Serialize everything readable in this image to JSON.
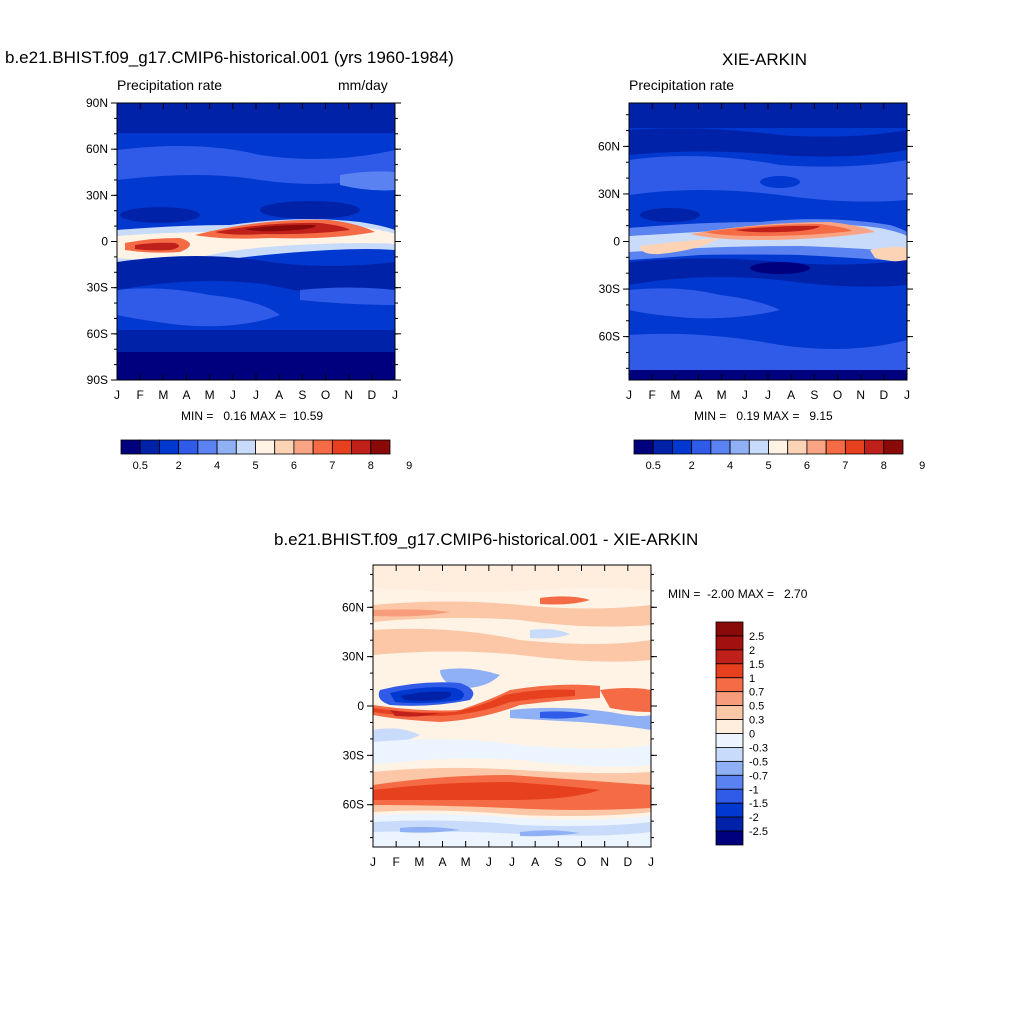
{
  "months": [
    "J",
    "F",
    "M",
    "A",
    "M",
    "J",
    "J",
    "A",
    "S",
    "O",
    "N",
    "D",
    "J"
  ],
  "palette": [
    "#00007f",
    "#0022a8",
    "#0038d0",
    "#2f5be8",
    "#5a82f0",
    "#8fb0f5",
    "#c8dbfb",
    "#fff3e6",
    "#fdd3b6",
    "#f9a585",
    "#f46b45",
    "#e6401e",
    "#c0201a",
    "#8a0a0a"
  ],
  "diff_palette": [
    "#00007f",
    "#0022a8",
    "#0038d0",
    "#2f5be8",
    "#5a82f0",
    "#8fb0f5",
    "#c8dbfb",
    "#ebf4ff",
    "#ffeedd",
    "#fcc7a6",
    "#f89d7c",
    "#f46b45",
    "#e6401e",
    "#c0201a",
    "#a31010",
    "#8a0a0a"
  ],
  "panels": {
    "model": {
      "title": "b.e21.BHIST.f09_g17.CMIP6-historical.001 (yrs 1960-1984)",
      "left_label": "Precipitation rate",
      "right_label": "mm/day",
      "stats": "MIN =   0.16 MAX =  10.59",
      "y_ticks": [
        "90N",
        "60N",
        "30N",
        "0",
        "30S",
        "60S",
        "90S"
      ],
      "colorbar_labels": [
        "0.5",
        "2",
        "4",
        "5",
        "6",
        "7",
        "8",
        "9"
      ]
    },
    "obs": {
      "title": "XIE-ARKIN",
      "left_label": "Precipitation rate",
      "stats": "MIN =   0.19 MAX =   9.15",
      "y_ticks": [
        "60N",
        "30N",
        "0",
        "30S",
        "60S"
      ],
      "colorbar_labels": [
        "0.5",
        "2",
        "4",
        "5",
        "6",
        "7",
        "8",
        "9"
      ]
    },
    "diff": {
      "title": "b.e21.BHIST.f09_g17.CMIP6-historical.001 - XIE-ARKIN",
      "stats": "MIN =  -2.00 MAX =   2.70",
      "y_ticks": [
        "60N",
        "30N",
        "0",
        "30S",
        "60S"
      ],
      "colorbar_labels": [
        "2.5",
        "2",
        "1.5",
        "1",
        "0.7",
        "0.5",
        "0.3",
        "0",
        "-0.3",
        "-0.5",
        "-0.7",
        "-1",
        "-1.5",
        "-2",
        "-2.5"
      ]
    }
  },
  "chart_data": [
    {
      "type": "heatmap",
      "title": "b.e21.BHIST.f09_g17.CMIP6-historical.001 (yrs 1960-1984)",
      "subtitle_left": "Precipitation rate",
      "units": "mm/day",
      "x_ticks": [
        "J",
        "F",
        "M",
        "A",
        "M",
        "J",
        "J",
        "A",
        "S",
        "O",
        "N",
        "D",
        "J"
      ],
      "y_ticks": [
        "90N",
        "60N",
        "30N",
        "0",
        "30S",
        "60S",
        "90S"
      ],
      "ylim": [
        -90,
        90
      ],
      "levels": [
        0.5,
        2,
        4,
        5,
        6,
        7,
        8,
        9
      ],
      "min": 0.16,
      "max": 10.59
    },
    {
      "type": "heatmap",
      "title": "XIE-ARKIN",
      "subtitle_left": "Precipitation rate",
      "x_ticks": [
        "J",
        "F",
        "M",
        "A",
        "M",
        "J",
        "J",
        "A",
        "S",
        "O",
        "N",
        "D",
        "J"
      ],
      "y_ticks": [
        "60N",
        "30N",
        "0",
        "30S",
        "60S"
      ],
      "ylim": [
        -90,
        90
      ],
      "levels": [
        0.5,
        2,
        4,
        5,
        6,
        7,
        8,
        9
      ],
      "min": 0.19,
      "max": 9.15
    },
    {
      "type": "heatmap",
      "title": "b.e21.BHIST.f09_g17.CMIP6-historical.001 - XIE-ARKIN",
      "x_ticks": [
        "J",
        "F",
        "M",
        "A",
        "M",
        "J",
        "J",
        "A",
        "S",
        "O",
        "N",
        "D",
        "J"
      ],
      "y_ticks": [
        "60N",
        "30N",
        "0",
        "30S",
        "60S"
      ],
      "ylim": [
        -90,
        90
      ],
      "levels": [
        -2.5,
        -2,
        -1.5,
        -1,
        -0.7,
        -0.5,
        -0.3,
        0,
        0.3,
        0.5,
        0.7,
        1,
        1.5,
        2,
        2.5
      ],
      "min": -2.0,
      "max": 2.7
    }
  ]
}
